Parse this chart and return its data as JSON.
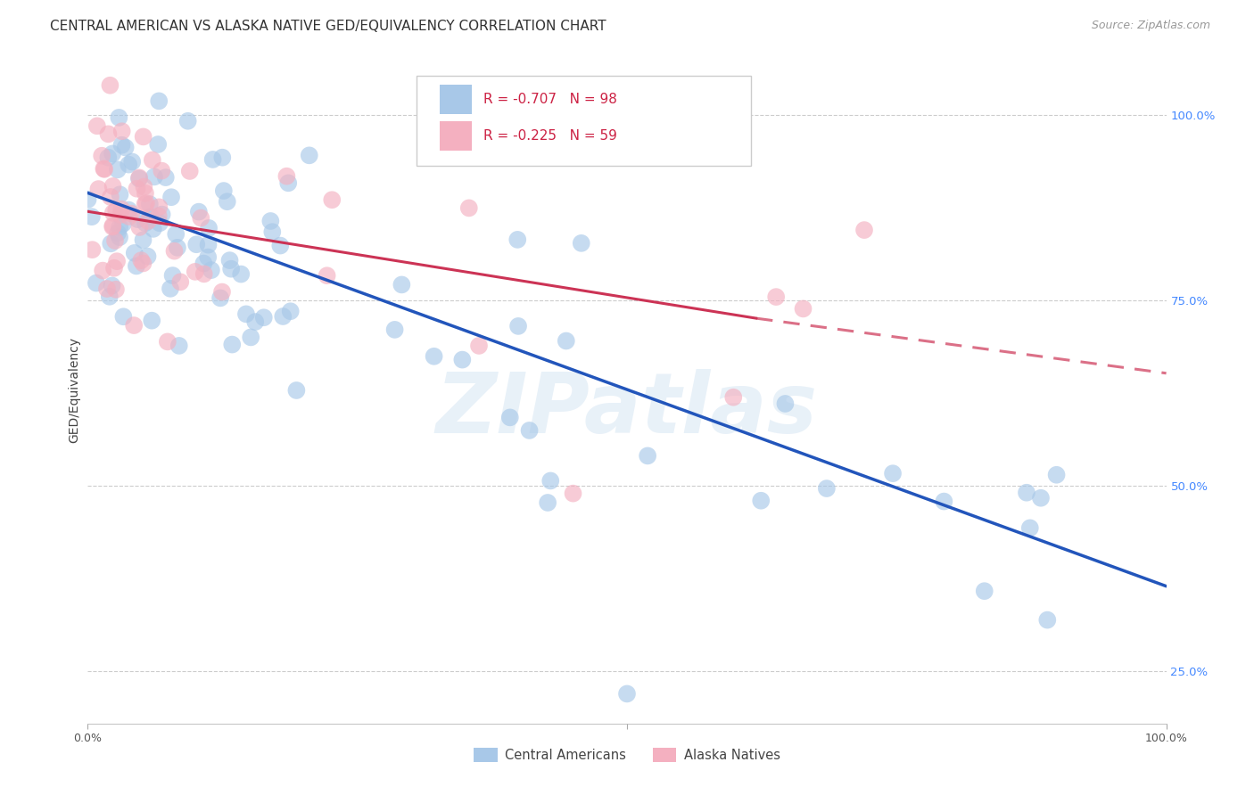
{
  "title": "CENTRAL AMERICAN VS ALASKA NATIVE GED/EQUIVALENCY CORRELATION CHART",
  "source": "Source: ZipAtlas.com",
  "ylabel": "GED/Equivalency",
  "legend_blue_label": "Central Americans",
  "legend_pink_label": "Alaska Natives",
  "xlim": [
    0.0,
    1.0
  ],
  "ylim": [
    0.18,
    1.08
  ],
  "blue_scatter_color": "#a8c8e8",
  "pink_scatter_color": "#f4b0c0",
  "blue_line_color": "#2255bb",
  "pink_line_color": "#cc3355",
  "watermark": "ZIPatlas",
  "background_color": "#ffffff",
  "grid_color": "#cccccc",
  "title_color": "#333333",
  "axis_label_color": "#444444",
  "right_tick_color": "#4488ff",
  "legend_r_color": "#cc2244",
  "legend_n_color": "#2255cc",
  "blue_line_start_x": 0.0,
  "blue_line_start_y": 0.895,
  "blue_line_end_x": 1.0,
  "blue_line_end_y": 0.365,
  "pink_line_start_x": 0.0,
  "pink_line_start_y": 0.87,
  "pink_line_solid_end_x": 0.62,
  "pink_line_solid_end_y": 0.726,
  "pink_line_dash_end_x": 1.0,
  "pink_line_dash_end_y": 0.652,
  "seed": 123
}
